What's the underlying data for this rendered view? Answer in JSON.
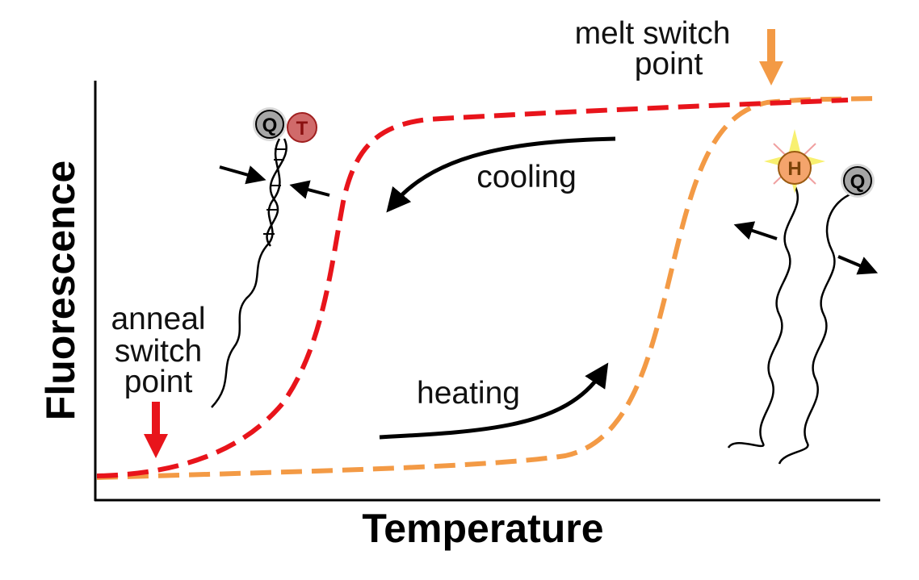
{
  "axes": {
    "x_label": "Temperature",
    "y_label": "Fluorescence"
  },
  "annotations": {
    "cooling": "cooling",
    "heating": "heating",
    "anneal": [
      "anneal",
      "switch",
      "point"
    ],
    "melt": [
      "melt switch",
      "point"
    ]
  },
  "molecules": {
    "quencher_label": "Q",
    "target_label": "T",
    "hybeacon_label": "H"
  },
  "curves": [
    {
      "name": "cooling curve",
      "color": "#e8141b",
      "style": "dashed"
    },
    {
      "name": "heating curve",
      "color": "#f39a45",
      "style": "dashed"
    }
  ],
  "colors": {
    "anneal_arrow": "#e8141b",
    "melt_arrow": "#f39a45",
    "hybeacon_glow": "#f8f070",
    "quencher": "#a6a6a6",
    "target": "#d06a6a"
  }
}
